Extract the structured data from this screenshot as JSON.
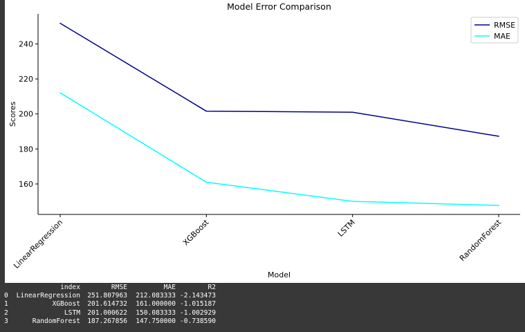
{
  "chart_data": {
    "type": "line",
    "title": "Model Error Comparison",
    "xlabel": "Model",
    "ylabel": "Scores",
    "categories": [
      "LinearRegression",
      "XGBoost",
      "LSTM",
      "RandomForest"
    ],
    "ylim": [
      142.6,
      257.2
    ],
    "yticks": [
      160,
      180,
      200,
      220,
      240
    ],
    "grid": false,
    "legend": "top-right",
    "series": [
      {
        "name": "RMSE",
        "color": "#00008b",
        "values": [
          251.807963,
          201.614732,
          201.000622,
          187.267856
        ]
      },
      {
        "name": "MAE",
        "color": "#00ffff",
        "values": [
          212.083333,
          161.0,
          150.083333,
          147.75
        ]
      }
    ]
  },
  "table": {
    "headers": [
      "",
      "index",
      "RMSE",
      "MAE",
      "R2"
    ],
    "rows": [
      [
        "0",
        "LinearRegression",
        "251.807963",
        "212.083333",
        "-2.143473"
      ],
      [
        "1",
        "XGBoost",
        "201.614732",
        "161.000000",
        "-1.015187"
      ],
      [
        "2",
        "LSTM",
        "201.000622",
        "150.083333",
        "-1.002929"
      ],
      [
        "3",
        "RandomForest",
        "187.267856",
        "147.750000",
        "-0.738590"
      ]
    ]
  }
}
